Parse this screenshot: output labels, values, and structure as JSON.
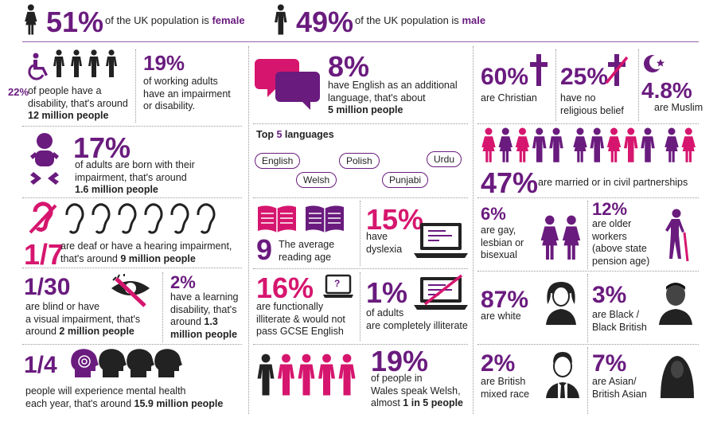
{
  "top": {
    "female": {
      "pct": "51%",
      "pre": "of the UK population is",
      "word": "female"
    },
    "male": {
      "pct": "49%",
      "pre": "of the UK population is",
      "word": "male"
    }
  },
  "col1": {
    "dis22": {
      "pct": "22%",
      "l1": "of people have a",
      "l2": "disability, that's around",
      "l3": "12 million people"
    },
    "dis19": {
      "pct": "19%",
      "l1": "of working adults",
      "l2": "have an impairment",
      "l3": "or disability."
    },
    "born": {
      "pct": "17%",
      "l1": "of adults are born with their",
      "l2": "impairment, that's around",
      "l3": "1.6 million people"
    },
    "deaf": {
      "pct": "1/7",
      "l1": "are deaf or have a hearing impairment,",
      "l2a": "that's around ",
      "l2b": "9 million people"
    },
    "blind": {
      "pct": "1/30",
      "l1": "are blind or have",
      "l2": "a visual impairment, that's",
      "l3a": "around ",
      "l3b": "2 million people"
    },
    "learn": {
      "pct": "2%",
      "l1": "have a learning",
      "l2": "disability, that's",
      "l3a": "around ",
      "l3b": "1.3",
      "l4": "million people"
    },
    "mental": {
      "pct": "1/4",
      "l1": "people will experience mental health",
      "l2a": "each year, that's around ",
      "l2b": "15.9 million people"
    }
  },
  "col2": {
    "eal": {
      "pct": "8%",
      "l1": "have English as an additional",
      "l2": "language, that's about",
      "l3": "5 million people"
    },
    "top5": {
      "a": "Top ",
      "b": "5",
      "c": " languages"
    },
    "languages": [
      "English",
      "Welsh",
      "Polish",
      "Punjabi",
      "Urdu"
    ],
    "reading": {
      "num": "9",
      "l1": "The average",
      "l2": "reading age"
    },
    "dyslexia": {
      "pct": "15%",
      "l1": "have",
      "l2": "dyslexia"
    },
    "illit16": {
      "pct": "16%",
      "l1": "are functionally",
      "l2": "illiterate & would not",
      "l3": "pass GCSE English",
      "q": "?"
    },
    "illit1": {
      "pct": "1%",
      "l1": "of adults",
      "l2": "are completely illiterate"
    },
    "welsh": {
      "pct": "19%",
      "l1": "of people in",
      "l2": "Wales speak Welsh,",
      "l3a": "almost ",
      "l3b": "1 in 5 people"
    }
  },
  "col3": {
    "christian": {
      "pct": "60%",
      "l1": "are Christian"
    },
    "norel": {
      "pct": "25%",
      "l1": "have no",
      "l2": "religious belief"
    },
    "muslim": {
      "pct": "4.8%",
      "l1": "are Muslim"
    },
    "married": {
      "pct": "47%",
      "l1": "are married or in civil partnerships"
    },
    "gay": {
      "pct": "6%",
      "l1": "are gay,",
      "l2": "lesbian or",
      "l3": "bisexual"
    },
    "older": {
      "pct": "12%",
      "l1": "are older",
      "l2": "workers",
      "l3": "(above state",
      "l4": "pension age)"
    },
    "white": {
      "pct": "87%",
      "l1": "are white"
    },
    "black": {
      "pct": "3%",
      "l1": "are Black /",
      "l2": "Black British"
    },
    "mixed": {
      "pct": "2%",
      "l1": "are British",
      "l2": "mixed race"
    },
    "asian": {
      "pct": "7%",
      "l1": "are Asian/",
      "l2": "British Asian"
    }
  },
  "colors": {
    "purple": "#6a1b7e",
    "pink": "#d6166e",
    "dark": "#222222"
  }
}
